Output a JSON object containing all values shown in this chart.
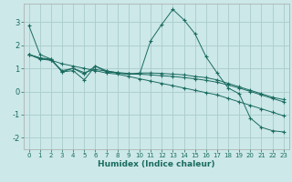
{
  "xlabel": "Humidex (Indice chaleur)",
  "bg_color": "#cce8e8",
  "grid_color": "#aacccc",
  "line_color": "#1a6b60",
  "xlim": [
    -0.5,
    23.5
  ],
  "ylim": [
    -2.5,
    3.8
  ],
  "xticks": [
    0,
    1,
    2,
    3,
    4,
    5,
    6,
    7,
    8,
    9,
    10,
    11,
    12,
    13,
    14,
    15,
    16,
    17,
    18,
    19,
    20,
    21,
    22,
    23
  ],
  "yticks": [
    -2,
    -1,
    0,
    1,
    2,
    3
  ],
  "line1_x": [
    0,
    1,
    2,
    3,
    4,
    5,
    6,
    7,
    8,
    9,
    10,
    11,
    12,
    13,
    14,
    15,
    16,
    17,
    18,
    19,
    20,
    21,
    22,
    23
  ],
  "line1_y": [
    2.85,
    1.6,
    1.4,
    0.85,
    0.9,
    0.5,
    1.1,
    0.85,
    0.8,
    0.75,
    0.75,
    2.2,
    2.9,
    3.55,
    3.1,
    2.5,
    1.5,
    0.8,
    0.15,
    -0.1,
    -1.15,
    -1.55,
    -1.7,
    -1.75
  ],
  "line2_x": [
    0,
    1,
    2,
    3,
    4,
    5,
    6,
    7,
    8,
    9,
    10,
    11,
    12,
    13,
    14,
    15,
    16,
    17,
    18,
    19,
    20,
    21,
    22,
    23
  ],
  "line2_y": [
    1.6,
    1.45,
    1.35,
    1.2,
    1.1,
    1.0,
    0.9,
    0.8,
    0.75,
    0.65,
    0.55,
    0.45,
    0.35,
    0.25,
    0.15,
    0.05,
    -0.05,
    -0.15,
    -0.3,
    -0.45,
    -0.6,
    -0.75,
    -0.9,
    -1.05
  ],
  "line3_x": [
    0,
    1,
    2,
    3,
    4,
    5,
    6,
    7,
    8,
    9,
    10,
    11,
    12,
    13,
    14,
    15,
    16,
    17,
    18,
    19,
    20,
    21,
    22,
    23
  ],
  "line3_y": [
    1.6,
    1.45,
    1.4,
    0.85,
    1.0,
    0.75,
    1.1,
    0.9,
    0.8,
    0.75,
    0.8,
    0.8,
    0.78,
    0.75,
    0.72,
    0.65,
    0.6,
    0.5,
    0.35,
    0.2,
    0.05,
    -0.1,
    -0.25,
    -0.35
  ],
  "line4_x": [
    0,
    1,
    2,
    3,
    4,
    5,
    6,
    7,
    8,
    9,
    10,
    11,
    12,
    13,
    14,
    15,
    16,
    17,
    18,
    19,
    20,
    21,
    22,
    23
  ],
  "line4_y": [
    1.6,
    1.4,
    1.35,
    0.9,
    1.0,
    0.82,
    0.95,
    0.88,
    0.82,
    0.78,
    0.75,
    0.72,
    0.68,
    0.65,
    0.6,
    0.55,
    0.48,
    0.4,
    0.28,
    0.15,
    0.0,
    -0.15,
    -0.3,
    -0.45
  ]
}
